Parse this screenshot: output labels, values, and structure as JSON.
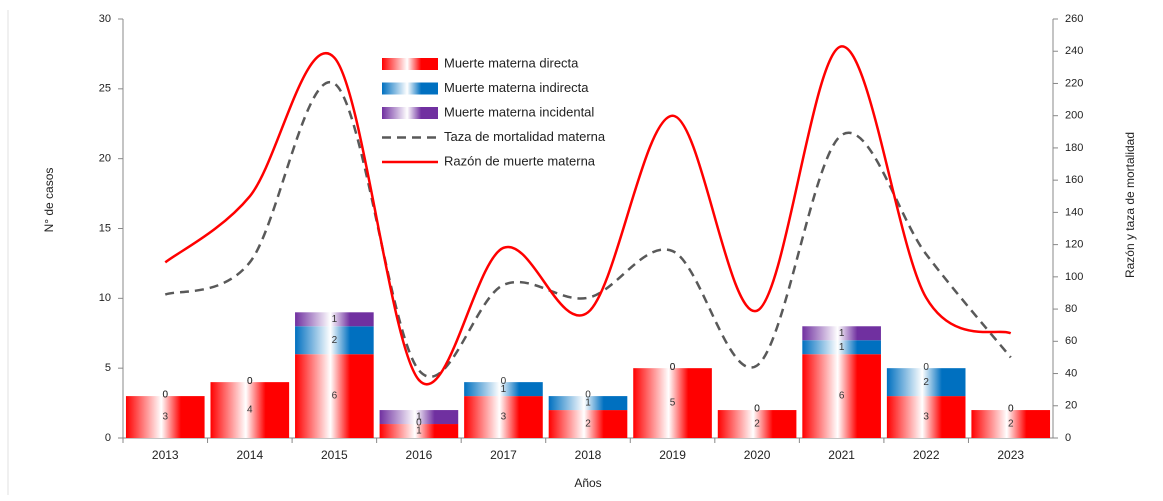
{
  "chart_data": {
    "type": "bar",
    "xlabel": "Años",
    "ylabel": "N° de casos",
    "y2label": "Razón  y taza de mortalidad",
    "categories": [
      "2013",
      "2014",
      "2015",
      "2016",
      "2017",
      "2018",
      "2019",
      "2020",
      "2021",
      "2022",
      "2023"
    ],
    "series": [
      {
        "name": "Muerte materna directa",
        "type": "bar",
        "color": "#ff0000",
        "values": [
          3,
          4,
          6,
          1,
          3,
          2,
          5,
          2,
          6,
          3,
          2
        ]
      },
      {
        "name": "Muerte materna indirecta",
        "type": "bar",
        "color": "#0070c0",
        "values": [
          0,
          0,
          2,
          0,
          1,
          1,
          0,
          0,
          1,
          2,
          0
        ]
      },
      {
        "name": "Muerte materna incidental",
        "type": "bar",
        "color": "#7030a0",
        "values": [
          0,
          0,
          1,
          1,
          0,
          0,
          0,
          0,
          1,
          0,
          0
        ]
      },
      {
        "name": "Taza de mortalidad materna",
        "type": "line",
        "axis": "y2",
        "color": "#595959",
        "line_style": "dashed",
        "values": [
          89,
          109,
          220,
          42,
          95,
          87,
          116,
          45,
          188,
          114,
          50
        ]
      },
      {
        "name": "Razón de muerte materna",
        "type": "line",
        "axis": "y2",
        "color": "#ff0000",
        "line_style": "solid",
        "values": [
          109,
          150,
          236,
          36,
          118,
          78,
          200,
          79,
          243,
          87,
          65
        ]
      }
    ],
    "ylim": [
      0,
      30
    ],
    "yticks": [
      0,
      5,
      10,
      15,
      20,
      25,
      30
    ],
    "y2lim": [
      0,
      260
    ],
    "y2ticks": [
      0,
      20,
      40,
      60,
      80,
      100,
      120,
      140,
      160,
      180,
      200,
      220,
      240,
      260
    ],
    "legend": "top"
  }
}
